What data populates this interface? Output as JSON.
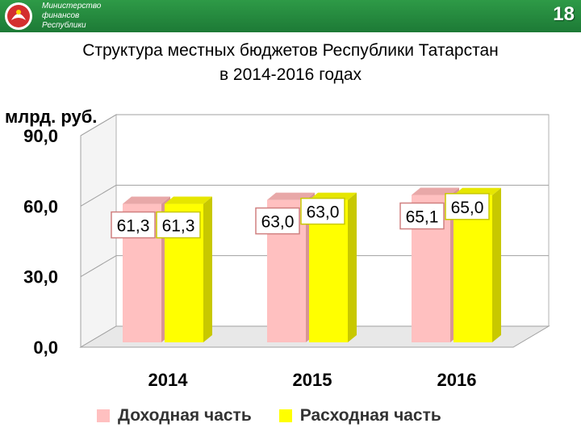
{
  "header": {
    "ministry_lines": [
      "Министерство",
      "финансов",
      "Республики"
    ],
    "slide_number": "18"
  },
  "title_lines": [
    "Структура местных бюджетов Республики Татарстан",
    "в 2014-2016 годах"
  ],
  "colors": {
    "income": "#ffc0c0",
    "expense": "#ffff00",
    "band": "#1d7a36"
  },
  "chart_data": {
    "type": "bar",
    "title": "Структура местных бюджетов Республики Татарстан в 2014-2016 годах",
    "ylabel": "млрд. руб.",
    "xlabel": "",
    "categories": [
      "2014",
      "2015",
      "2016"
    ],
    "series": [
      {
        "name": "Доходная часть",
        "values": [
          61.3,
          63.0,
          65.1
        ],
        "labels": [
          "61,3",
          "63,0",
          "65,1"
        ]
      },
      {
        "name": "Расходная часть",
        "values": [
          61.3,
          63.0,
          65.0
        ],
        "labels": [
          "61,3",
          "63,0",
          "65,0"
        ]
      }
    ],
    "ylim": [
      0,
      90
    ],
    "yticks": [
      0,
      30,
      60,
      90
    ],
    "ytick_labels": [
      "0,0",
      "30,0",
      "60,0",
      "90,0"
    ],
    "grid": true,
    "legend": "bottom"
  }
}
